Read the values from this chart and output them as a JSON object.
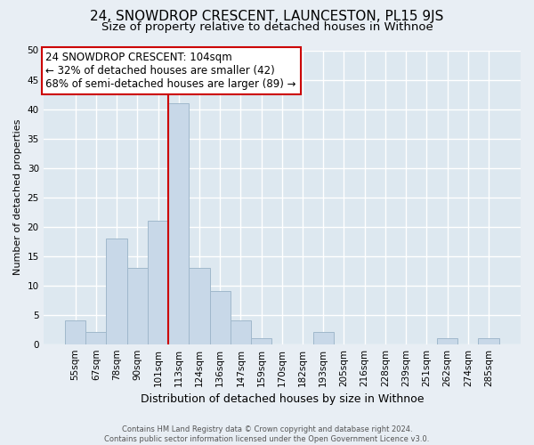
{
  "title": "24, SNOWDROP CRESCENT, LAUNCESTON, PL15 9JS",
  "subtitle": "Size of property relative to detached houses in Withnoe",
  "xlabel": "Distribution of detached houses by size in Withnoe",
  "ylabel": "Number of detached properties",
  "footer_lines": [
    "Contains HM Land Registry data © Crown copyright and database right 2024.",
    "Contains public sector information licensed under the Open Government Licence v3.0."
  ],
  "bins": [
    "55sqm",
    "67sqm",
    "78sqm",
    "90sqm",
    "101sqm",
    "113sqm",
    "124sqm",
    "136sqm",
    "147sqm",
    "159sqm",
    "170sqm",
    "182sqm",
    "193sqm",
    "205sqm",
    "216sqm",
    "228sqm",
    "239sqm",
    "251sqm",
    "262sqm",
    "274sqm",
    "285sqm"
  ],
  "values": [
    4,
    2,
    18,
    13,
    21,
    41,
    13,
    9,
    4,
    1,
    0,
    0,
    2,
    0,
    0,
    0,
    0,
    0,
    1,
    0,
    1
  ],
  "bar_color": "#c8d8e8",
  "bar_edge_color": "#a0b8cc",
  "vline_x_index": 4.5,
  "vline_color": "#cc0000",
  "annotation_text": "24 SNOWDROP CRESCENT: 104sqm\n← 32% of detached houses are smaller (42)\n68% of semi-detached houses are larger (89) →",
  "annotation_box_edgecolor": "#cc0000",
  "annotation_box_facecolor": "#ffffff",
  "ylim": [
    0,
    50
  ],
  "yticks": [
    0,
    5,
    10,
    15,
    20,
    25,
    30,
    35,
    40,
    45,
    50
  ],
  "bg_color": "#e8eef4",
  "plot_bg_color": "#dde8f0",
  "grid_color": "#ffffff",
  "title_fontsize": 11,
  "subtitle_fontsize": 9.5,
  "xlabel_fontsize": 9,
  "ylabel_fontsize": 8,
  "tick_fontsize": 7.5,
  "annotation_fontsize": 8.5,
  "footer_fontsize": 6
}
